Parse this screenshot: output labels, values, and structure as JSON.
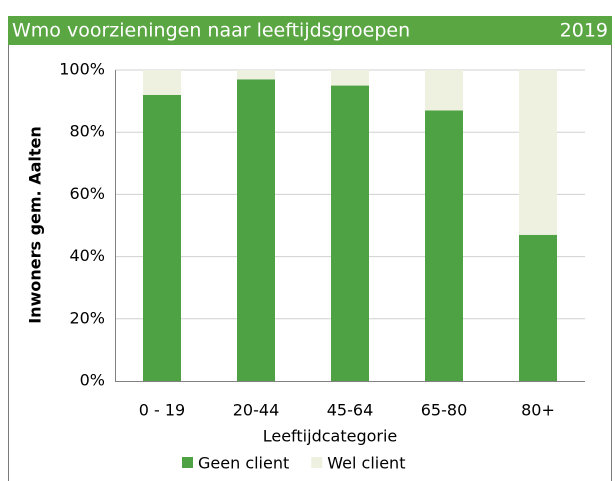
{
  "chart_data": {
    "type": "bar",
    "stacked": true,
    "title": "Wmo voorzieningen naar leeftijdsgroepen",
    "subtitle": "2019",
    "x_label": "Leeftijdcategorie",
    "y_label": "Inwoners gem. Aalten",
    "categories": [
      "0 - 19",
      "20-44",
      "45-64",
      "65-80",
      "80+"
    ],
    "series": [
      {
        "name": "Geen client",
        "color": "#4ea243",
        "values": [
          92,
          97,
          95,
          87,
          47
        ]
      },
      {
        "name": "Wel client",
        "color": "#eef1e0",
        "values": [
          8,
          3,
          5,
          13,
          53
        ]
      }
    ],
    "ylim": [
      0,
      100
    ],
    "yticks": [
      {
        "value": 0,
        "label": "0%"
      },
      {
        "value": 20,
        "label": "20%"
      },
      {
        "value": 40,
        "label": "40%"
      },
      {
        "value": 60,
        "label": "60%"
      },
      {
        "value": 80,
        "label": "80%"
      },
      {
        "value": 100,
        "label": "100%"
      }
    ],
    "grid": true,
    "legend": "bottom"
  }
}
